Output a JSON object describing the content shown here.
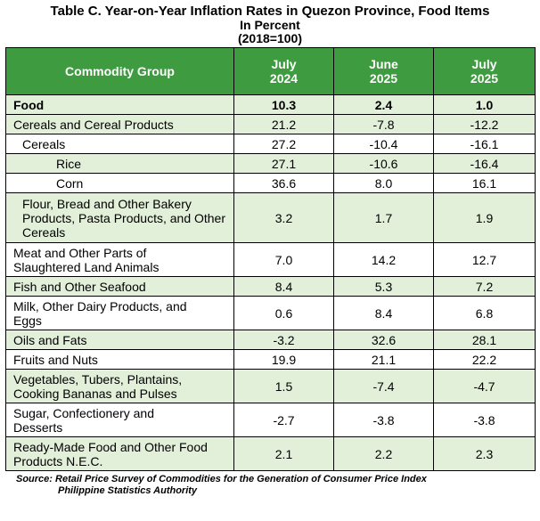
{
  "title": {
    "line1": "Table C. Year-on-Year Inflation Rates in Quezon Province, Food Items",
    "line2": "In Percent",
    "line3": "(2018=100)"
  },
  "header": {
    "col1": "Commodity Group",
    "col2_l1": "July",
    "col2_l2": "2024",
    "col3_l1": "June",
    "col3_l2": "2025",
    "col4_l1": "July",
    "col4_l2": "2025"
  },
  "rows": [
    {
      "label": "Food",
      "v1": "10.3",
      "v2": "2.4",
      "v3": "1.0"
    },
    {
      "label": "Cereals and Cereal Products",
      "v1": "21.2",
      "v2": "-7.8",
      "v3": "-12.2"
    },
    {
      "label": "Cereals",
      "v1": "27.2",
      "v2": "-10.4",
      "v3": "-16.1"
    },
    {
      "label": "Rice",
      "v1": "27.1",
      "v2": "-10.6",
      "v3": "-16.4"
    },
    {
      "label": "Corn",
      "v1": "36.6",
      "v2": "8.0",
      "v3": "16.1"
    },
    {
      "label": "Flour, Bread and Other Bakery Products, Pasta Products, and Other Cereals",
      "v1": "3.2",
      "v2": "1.7",
      "v3": "1.9"
    },
    {
      "label": "Meat and Other Parts of Slaughtered Land Animals",
      "v1": "7.0",
      "v2": "14.2",
      "v3": "12.7"
    },
    {
      "label": "Fish and Other Seafood",
      "v1": "8.4",
      "v2": "5.3",
      "v3": "7.2"
    },
    {
      "label": "Milk, Other Dairy Products, and Eggs",
      "v1": "0.6",
      "v2": "8.4",
      "v3": "6.8"
    },
    {
      "label": "Oils and Fats",
      "v1": "-3.2",
      "v2": "32.6",
      "v3": "28.1"
    },
    {
      "label": "Fruits and Nuts",
      "v1": "19.9",
      "v2": "21.1",
      "v3": "22.2"
    },
    {
      "label": "Vegetables, Tubers, Plantains, Cooking Bananas and Pulses",
      "v1": "1.5",
      "v2": "-7.4",
      "v3": "-4.7"
    },
    {
      "label": "Sugar, Confectionery and Desserts",
      "v1": "-2.7",
      "v2": "-3.8",
      "v3": "-3.8"
    },
    {
      "label": "Ready-Made Food and Other Food Products N.E.C.",
      "v1": "2.1",
      "v2": "2.2",
      "v3": "2.3"
    }
  ],
  "source": {
    "line1": "Source: Retail Price Survey of Commodities for the Generation of Consumer Price Index",
    "line2": "Philippine Statistics Authority"
  },
  "colors": {
    "header_bg": "#3f9b40",
    "shade_bg": "#e2efd9"
  }
}
